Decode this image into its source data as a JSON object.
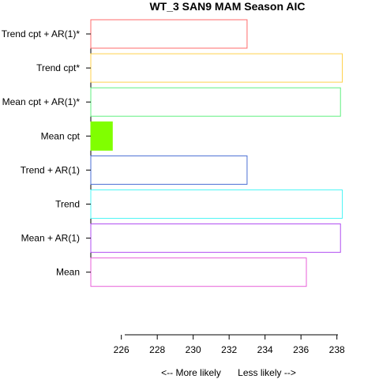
{
  "chart_data": {
    "type": "bar",
    "orientation": "horizontal",
    "title": "WT_3 SAN9 MAM Season AIC",
    "xlabel_left": "<--  More likely",
    "xlabel_right": "Less likely  -->",
    "xlim": [
      224.3,
      238.5
    ],
    "x_ticks": [
      "226",
      "228",
      "230",
      "232",
      "234",
      "236",
      "238"
    ],
    "grid": false,
    "legend": "none",
    "series": [
      {
        "categories": [
          "Trend cpt + AR(1)*",
          "Trend cpt*",
          "Mean cpt + AR(1)*",
          "Mean cpt",
          "Trend + AR(1)",
          "Trend",
          "Mean + AR(1)",
          "Mean"
        ],
        "values": [
          233.0,
          238.3,
          238.2,
          225.5,
          233.0,
          238.3,
          238.2,
          236.3
        ],
        "colors": [
          "#ff6b6b",
          "#ffd24d",
          "#5fef7f",
          "#80ff00",
          "#4a6fd4",
          "#50f5f5",
          "#b04df0",
          "#e85fd8"
        ],
        "filled": [
          false,
          false,
          false,
          true,
          false,
          false,
          false,
          false
        ]
      }
    ]
  }
}
